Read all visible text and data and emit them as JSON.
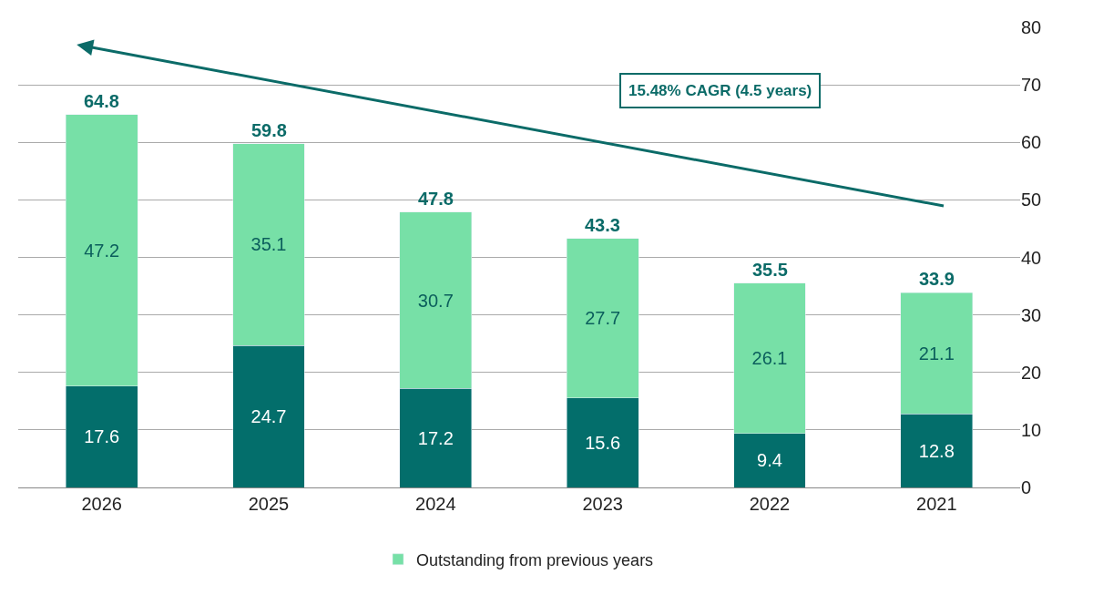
{
  "chart_data": {
    "type": "bar",
    "stacked": true,
    "categories": [
      "2026",
      "2025",
      "2024",
      "2023",
      "2022",
      "2021"
    ],
    "series": [
      {
        "color": "#036e6b",
        "values": [
          17.6,
          24.7,
          17.2,
          15.6,
          9.4,
          12.8
        ]
      },
      {
        "name": "Outstanding from previous years",
        "color": "#77e0a7",
        "values": [
          47.2,
          35.1,
          30.7,
          27.7,
          26.1,
          21.1
        ]
      }
    ],
    "totals": [
      "64.8",
      "59.8",
      "47.8",
      "43.3",
      "35.5",
      "33.9"
    ],
    "data_labels": true,
    "ylim": [
      0,
      80
    ],
    "yticks": [
      0,
      10,
      20,
      30,
      40,
      50,
      60,
      70,
      80
    ],
    "grid": "y",
    "legend": "bottom",
    "annotations": [
      "15.48% CAGR (4.5 years)"
    ]
  }
}
